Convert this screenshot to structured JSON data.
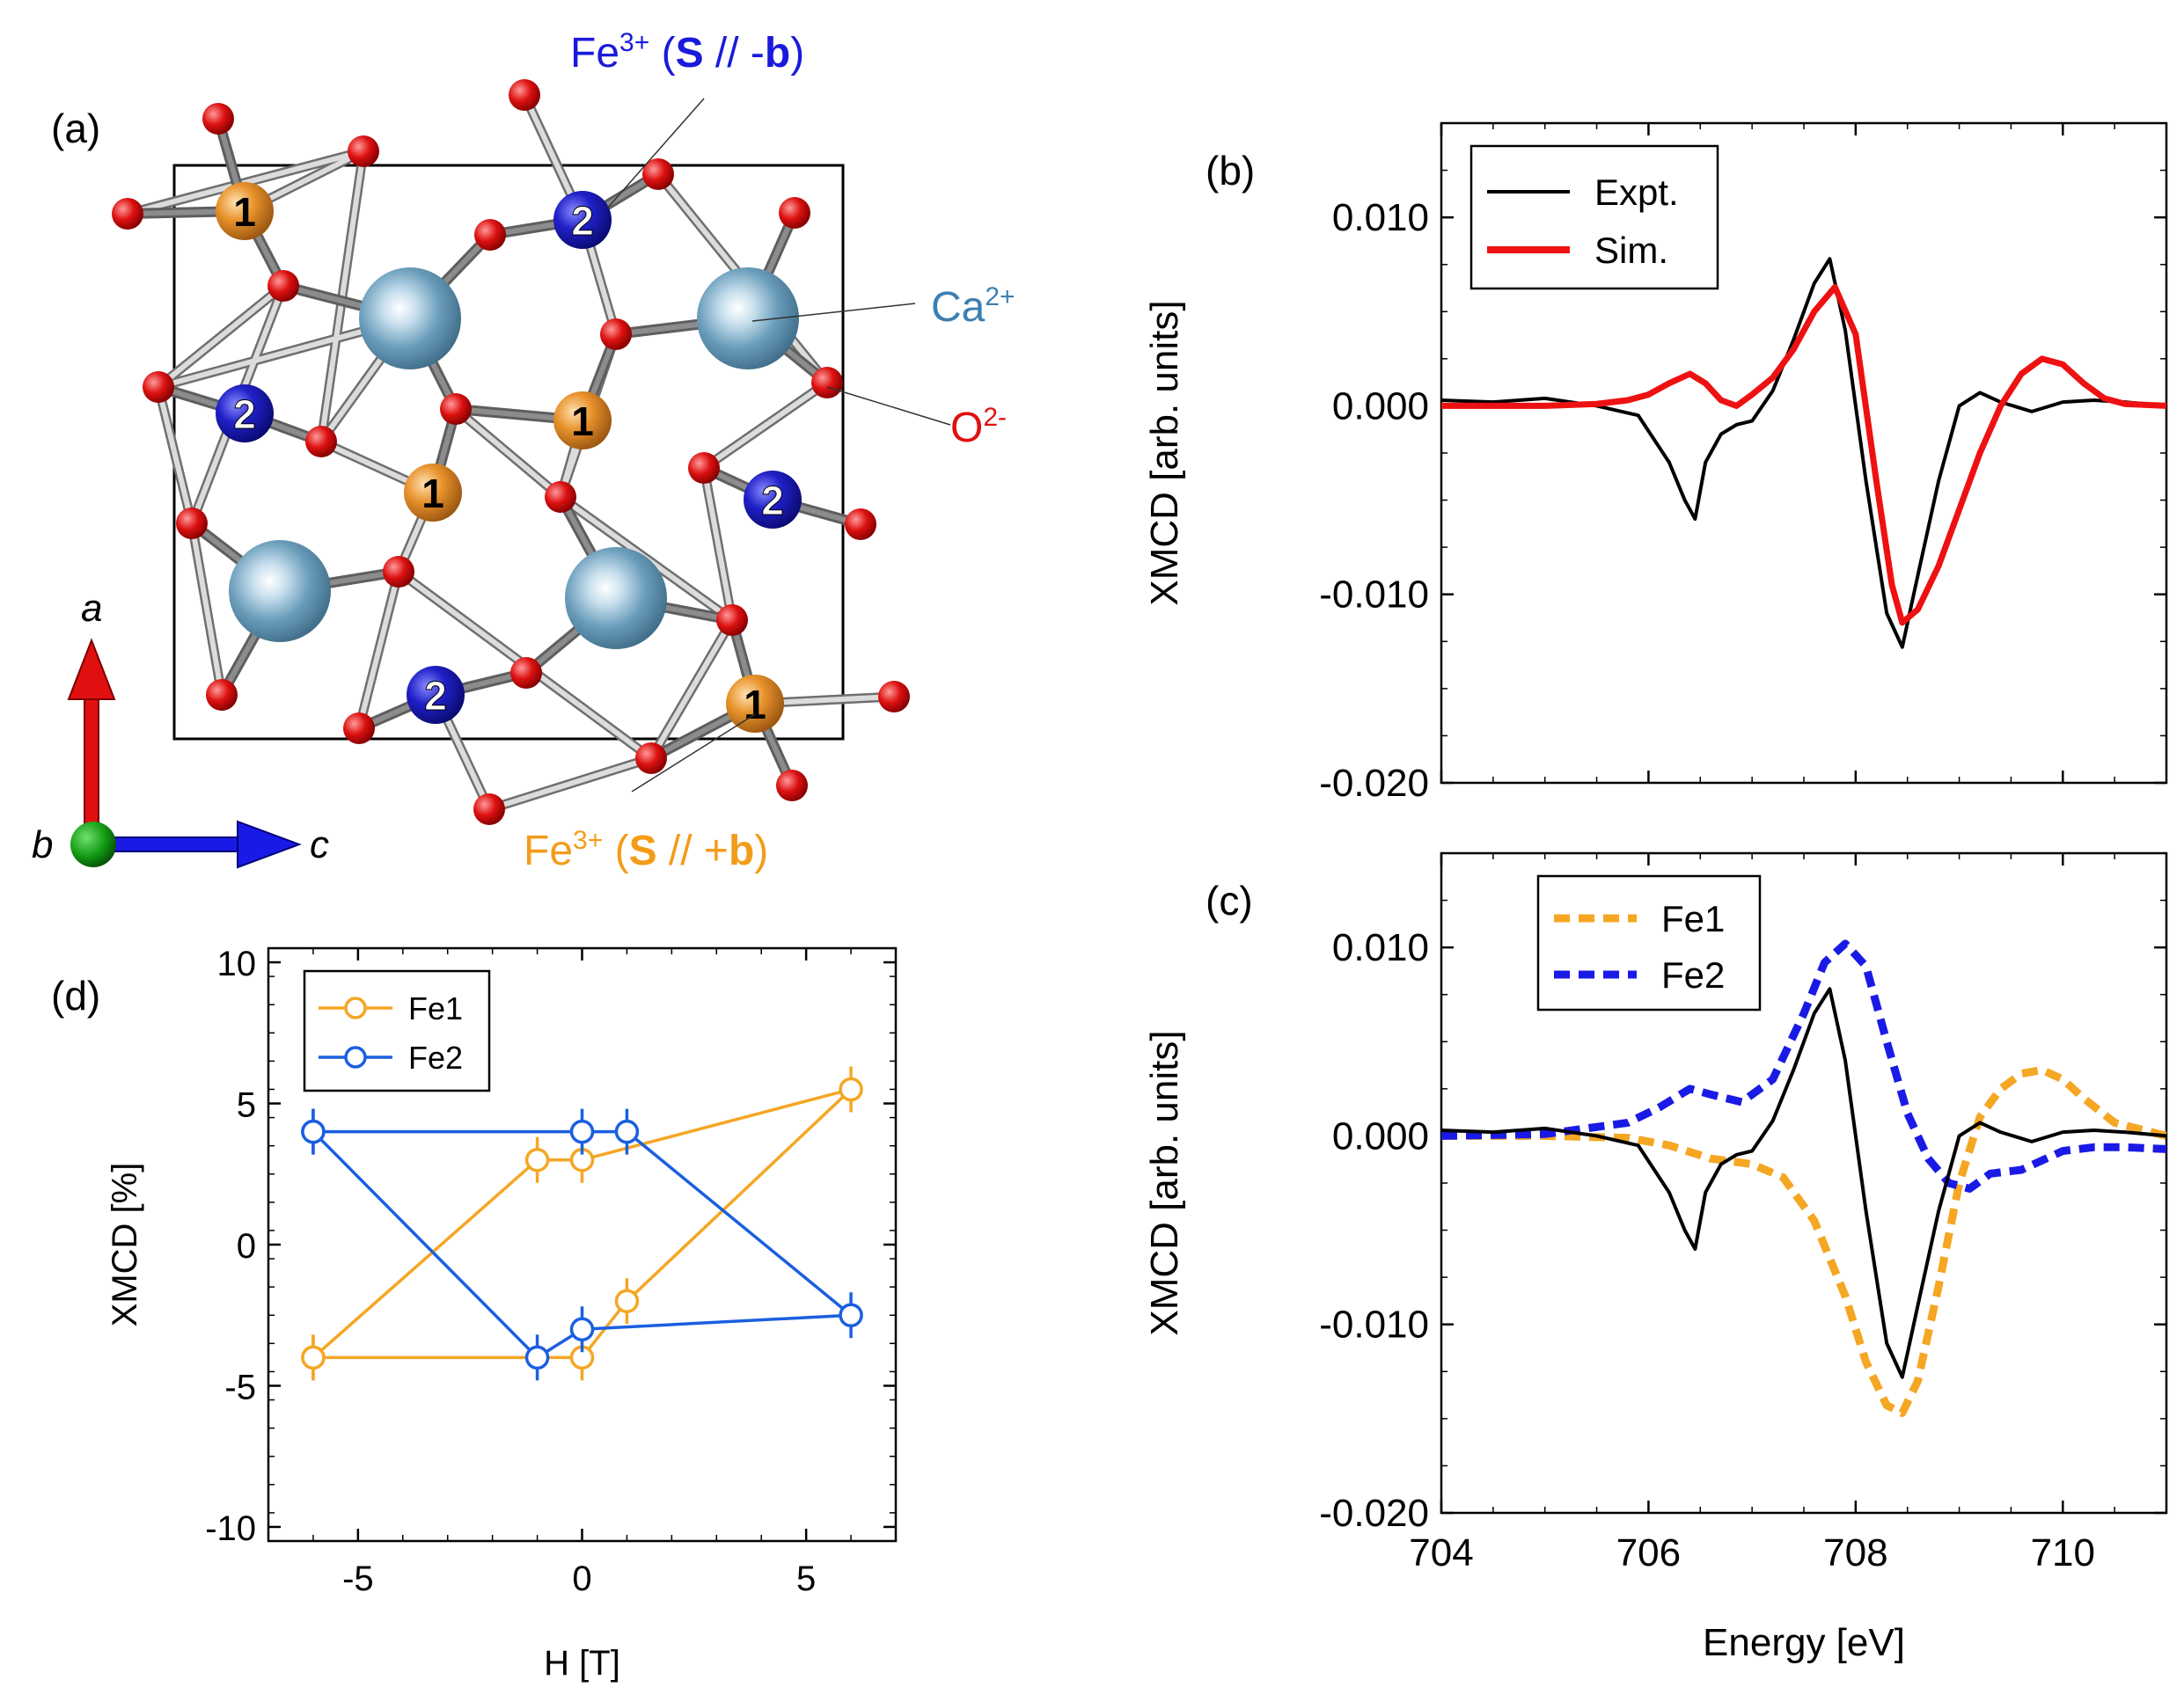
{
  "structure": {
    "panel_label": "(a)",
    "labels": {
      "fe_minus": {
        "prefix": "Fe",
        "sup": "3+",
        "open": " (",
        "bold1": "S",
        "mid": " // -",
        "bold2": "b",
        "close": ")",
        "color": "#1a1adc"
      },
      "fe_plus": {
        "prefix": "Fe",
        "sup": "3+",
        "open": " (",
        "bold1": "S",
        "mid": " // +",
        "bold2": "b",
        "close": ")",
        "color": "#f39c1a"
      },
      "ca": {
        "prefix": "Ca",
        "sup": "2+",
        "color": "#3c7fb2"
      },
      "o": {
        "prefix": "O",
        "sup": "2-",
        "color": "#e01010"
      }
    },
    "site_labels": {
      "fe1": "1",
      "fe2": "2"
    },
    "axes": {
      "a": "a",
      "b": "b",
      "c": "c"
    },
    "colors": {
      "fe1": "#e8922c",
      "fe2": "#2020c8",
      "ca": "#6a9dbb",
      "o": "#dd1111"
    }
  },
  "chart_data": [
    {
      "id": "b",
      "panel_label": "(b)",
      "type": "line",
      "xlabel": "",
      "ylabel": "XMCD [arb. units]",
      "xlim": [
        704,
        711
      ],
      "ylim": [
        -0.02,
        0.015
      ],
      "yticks": [
        -0.02,
        -0.01,
        0.0,
        0.01
      ],
      "ytick_labels": [
        "-0.020",
        "-0.010",
        "0.000",
        "0.010"
      ],
      "legend": "top-left",
      "series": [
        {
          "name": "Expt.",
          "color": "#000000",
          "style": "solid",
          "x": [
            704,
            704.5,
            705,
            705.5,
            705.9,
            706.2,
            706.35,
            706.45,
            706.55,
            706.7,
            706.85,
            707,
            707.2,
            707.4,
            707.6,
            707.75,
            707.9,
            708.1,
            708.3,
            708.45,
            708.6,
            708.8,
            709,
            709.2,
            709.4,
            709.7,
            710,
            710.3,
            710.6,
            711
          ],
          "y": [
            0.0003,
            0.0002,
            0.0004,
            0.0,
            -0.0005,
            -0.003,
            -0.005,
            -0.006,
            -0.003,
            -0.0015,
            -0.001,
            -0.0008,
            0.0008,
            0.0035,
            0.0065,
            0.0078,
            0.004,
            -0.004,
            -0.011,
            -0.0128,
            -0.009,
            -0.004,
            0.0,
            0.0007,
            0.0002,
            -0.0003,
            0.0002,
            0.0003,
            0.0002,
            0.0
          ]
        },
        {
          "name": "Sim.",
          "color": "#ee1111",
          "style": "solid",
          "x": [
            704,
            704.5,
            705,
            705.5,
            705.8,
            706,
            706.2,
            706.4,
            706.55,
            706.7,
            706.85,
            707,
            707.2,
            707.4,
            707.6,
            707.8,
            708,
            708.2,
            708.35,
            708.45,
            708.6,
            708.8,
            709,
            709.2,
            709.4,
            709.6,
            709.8,
            710,
            710.2,
            710.4,
            710.6,
            711
          ],
          "y": [
            0.0,
            0.0,
            0.0,
            0.0001,
            0.0003,
            0.0006,
            0.0012,
            0.0017,
            0.0012,
            0.0003,
            0.0,
            0.0006,
            0.0015,
            0.003,
            0.005,
            0.0063,
            0.0038,
            -0.004,
            -0.0095,
            -0.0115,
            -0.0108,
            -0.0085,
            -0.0055,
            -0.0025,
            0.0,
            0.0017,
            0.0025,
            0.0022,
            0.0012,
            0.0004,
            0.0001,
            0.0
          ]
        }
      ]
    },
    {
      "id": "c",
      "panel_label": "(c)",
      "type": "line",
      "xlabel": "Energy [eV]",
      "ylabel": "XMCD [arb. units]",
      "xlim": [
        704,
        711
      ],
      "ylim": [
        -0.02,
        0.015
      ],
      "xticks": [
        704,
        706,
        708,
        710
      ],
      "xtick_labels": [
        "704",
        "706",
        "708",
        "710"
      ],
      "yticks": [
        -0.02,
        -0.01,
        0.0,
        0.01
      ],
      "ytick_labels": [
        "-0.020",
        "-0.010",
        "0.000",
        "0.010"
      ],
      "legend": "top-left",
      "series": [
        {
          "name": "Fe1",
          "color": "#f5a623",
          "style": "dashed",
          "x": [
            704,
            705,
            705.8,
            706.2,
            706.6,
            707,
            707.3,
            707.6,
            707.9,
            708.1,
            708.3,
            708.45,
            708.6,
            708.8,
            709,
            709.2,
            709.4,
            709.6,
            709.8,
            710,
            710.2,
            710.5,
            711
          ],
          "y": [
            0.0,
            0.0,
            -0.0001,
            -0.0005,
            -0.0012,
            -0.0015,
            -0.0022,
            -0.0045,
            -0.0085,
            -0.012,
            -0.0143,
            -0.0147,
            -0.013,
            -0.008,
            -0.0025,
            0.001,
            0.0025,
            0.0033,
            0.0035,
            0.003,
            0.002,
            0.0007,
            0.0
          ]
        },
        {
          "name": "Fe2",
          "color": "#1a1ae6",
          "style": "dashed",
          "x": [
            704,
            705,
            705.8,
            706.1,
            706.4,
            706.6,
            706.9,
            707.2,
            707.5,
            707.7,
            707.9,
            708.1,
            708.3,
            708.5,
            708.7,
            708.9,
            709.1,
            709.3,
            709.6,
            710,
            710.3,
            710.6,
            711
          ],
          "y": [
            0.0,
            0.0001,
            0.0007,
            0.0015,
            0.0025,
            0.0022,
            0.0018,
            0.003,
            0.0065,
            0.0092,
            0.0102,
            0.009,
            0.005,
            0.0012,
            -0.0012,
            -0.0025,
            -0.0028,
            -0.002,
            -0.0018,
            -0.0008,
            -0.0006,
            -0.0006,
            -0.0007
          ]
        },
        {
          "name": "",
          "color": "#000000",
          "style": "solid",
          "x": [
            704,
            704.5,
            705,
            705.5,
            705.9,
            706.2,
            706.35,
            706.45,
            706.55,
            706.7,
            706.85,
            707,
            707.2,
            707.4,
            707.6,
            707.75,
            707.9,
            708.1,
            708.3,
            708.45,
            708.6,
            708.8,
            709,
            709.2,
            709.4,
            709.7,
            710,
            710.3,
            710.6,
            711
          ],
          "y": [
            0.0003,
            0.0002,
            0.0004,
            0.0,
            -0.0005,
            -0.003,
            -0.005,
            -0.006,
            -0.003,
            -0.0015,
            -0.001,
            -0.0008,
            0.0008,
            0.0035,
            0.0065,
            0.0078,
            0.004,
            -0.004,
            -0.011,
            -0.0128,
            -0.009,
            -0.004,
            0.0,
            0.0007,
            0.0002,
            -0.0003,
            0.0002,
            0.0003,
            0.0002,
            0.0
          ]
        }
      ]
    },
    {
      "id": "d",
      "panel_label": "(d)",
      "type": "line",
      "xlabel": "H [T]",
      "ylabel": "XMCD [%]",
      "xlim": [
        -7,
        7
      ],
      "ylim": [
        -10.5,
        10.5
      ],
      "xticks": [
        -5,
        0,
        5
      ],
      "xtick_labels": [
        "-5",
        "0",
        "5"
      ],
      "yticks": [
        -10,
        -5,
        0,
        5,
        10
      ],
      "ytick_labels": [
        "-10",
        "-5",
        "0",
        "5",
        "10"
      ],
      "legend": "top-left",
      "series": [
        {
          "name": "Fe1",
          "color": "#f5a623",
          "marker": "circle-open",
          "x": [
            -6,
            -1,
            0,
            6,
            1,
            0,
            -6
          ],
          "y": [
            -4,
            3,
            3,
            5.5,
            -2,
            -4,
            -4
          ]
        },
        {
          "name": "Fe2",
          "color": "#1a5fe0",
          "marker": "circle-open",
          "x": [
            -6,
            0,
            1,
            6,
            0,
            -1,
            -6
          ],
          "y": [
            4,
            4,
            4,
            -2.5,
            -3,
            -4,
            4
          ]
        }
      ]
    }
  ]
}
